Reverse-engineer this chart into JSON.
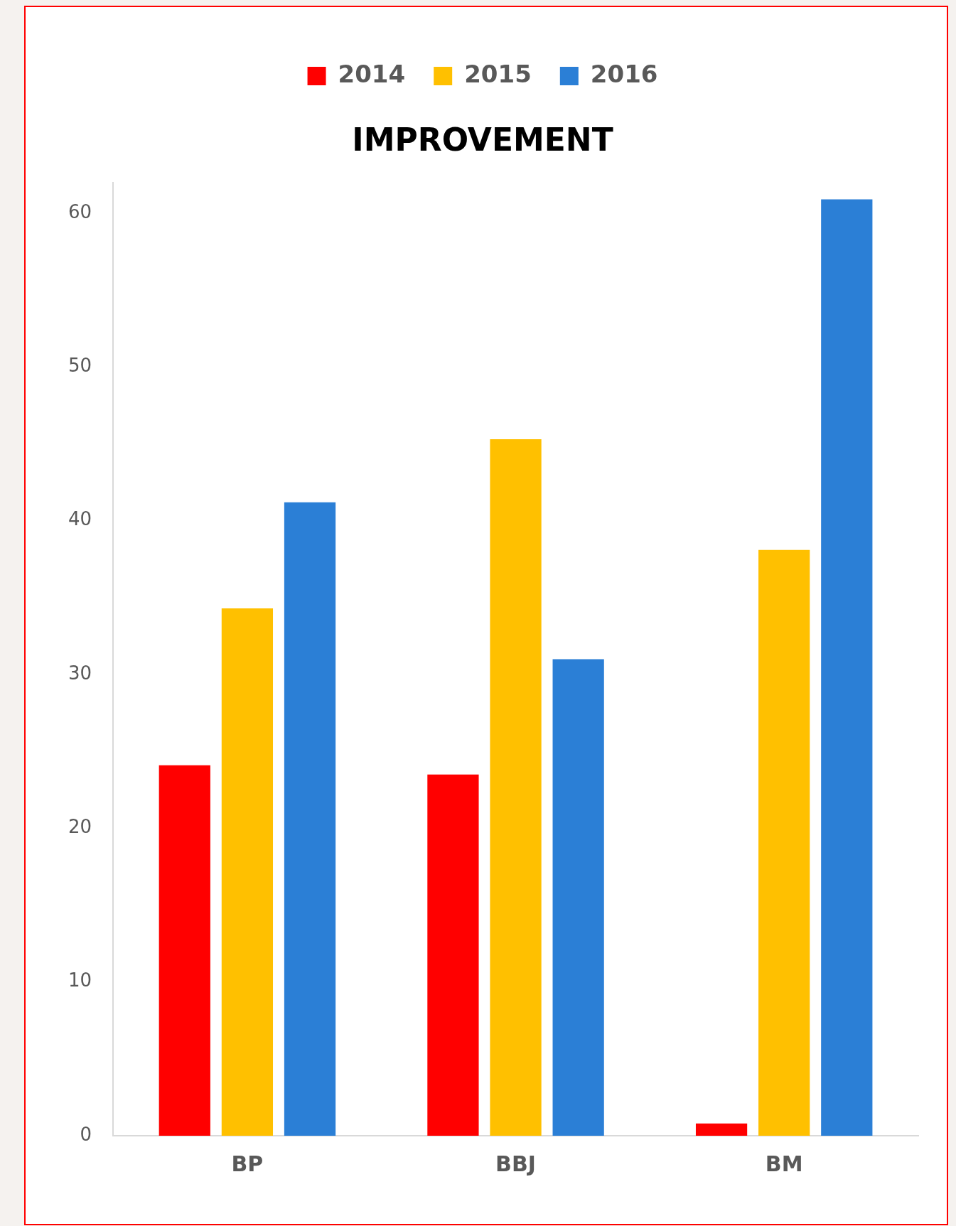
{
  "chart_data": {
    "type": "bar",
    "title": "IMPROVEMENT",
    "categories": [
      "BP",
      "BBJ",
      "BM"
    ],
    "series": [
      {
        "name": "2014",
        "color": "#ff0000",
        "values": [
          24.1,
          23.5,
          0.8
        ]
      },
      {
        "name": "2015",
        "color": "#ffc000",
        "values": [
          34.3,
          45.3,
          38.1
        ]
      },
      {
        "name": "2016",
        "color": "#2b7fd6",
        "values": [
          41.2,
          31.0,
          60.9
        ]
      }
    ],
    "ylim": [
      0,
      62
    ],
    "yticks": [
      0,
      10,
      20,
      30,
      40,
      50,
      60
    ],
    "grid": false,
    "legend": "top"
  }
}
